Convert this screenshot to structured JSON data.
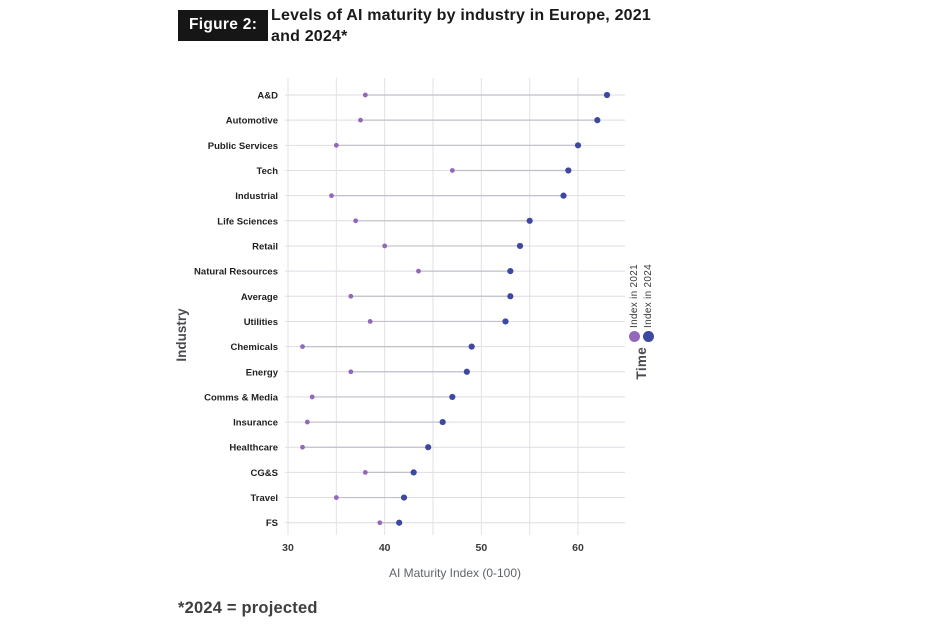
{
  "figure": {
    "badge": "Figure 2:",
    "title": "Levels of AI maturity by industry in Europe, 2021 and 2024*",
    "footnote": "*2024 = projected"
  },
  "chart_data": {
    "type": "scatter",
    "variant": "dumbbell-dot-plot",
    "title": "Levels of AI maturity by industry in Europe, 2021 and 2024*",
    "xlabel": "AI Maturity Index (0-100)",
    "ylabel": "Industry",
    "xlim": [
      29.6,
      64.8
    ],
    "xticks_labels": [
      30,
      40,
      50,
      60
    ],
    "xticks_gridlines": [
      30,
      35,
      40,
      45,
      50,
      55,
      60
    ],
    "grid": true,
    "legend": {
      "title": "Time",
      "position": "right, rotated 90 degrees, reads bottom-to-top",
      "entries": [
        "Index in 2021",
        "Index in 2024"
      ]
    },
    "categories": [
      "A&D",
      "Automotive",
      "Public Services",
      "Tech",
      "Industrial",
      "Life Sciences",
      "Retail",
      "Natural Resources",
      "Average",
      "Utilities",
      "Chemicals",
      "Energy",
      "Comms & Media",
      "Insurance",
      "Healthcare",
      "CG&S",
      "Travel",
      "FS"
    ],
    "series": [
      {
        "name": "Index in 2021",
        "color": "#9468b8",
        "values": [
          38,
          37.5,
          35,
          47,
          34.5,
          37,
          40,
          43.5,
          36.5,
          38.5,
          31.5,
          36.5,
          32.5,
          32,
          31.5,
          38,
          35,
          39.5
        ]
      },
      {
        "name": "Index in 2024",
        "color": "#3d49a0",
        "values": [
          63,
          62,
          60,
          59,
          58.5,
          55,
          54,
          53,
          53,
          52.5,
          49,
          48.5,
          47,
          46,
          44.5,
          43,
          42,
          41.5
        ]
      }
    ]
  },
  "colors": {
    "badge_bg": "#161616",
    "badge_text": "#ffffff",
    "vertical_grid": "#e2e2e7",
    "row_line": "#dedee3",
    "connector": "#c0c0c8",
    "tick_text": "#3a3a3a",
    "category_text": "#1f1f1f",
    "axis_title_text": "#5f6368",
    "y_axis_title_text": "#4a4a50"
  }
}
